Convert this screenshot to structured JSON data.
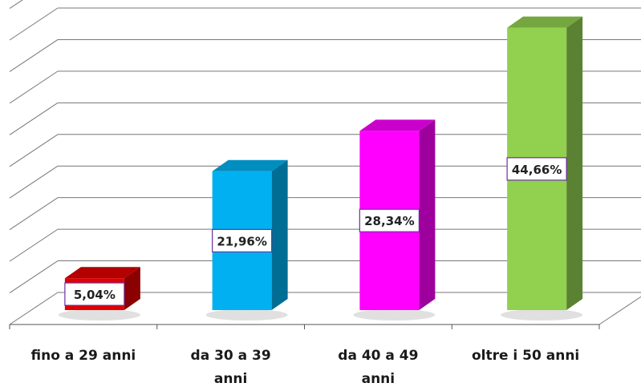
{
  "chart_data": {
    "type": "bar",
    "categories": [
      "fino a 29 anni",
      "da 30 a 39\nanni",
      "da 40 a 49\nanni",
      "oltre i 50 anni"
    ],
    "values": [
      5.04,
      21.96,
      28.34,
      44.66
    ],
    "value_labels": [
      "5,04%",
      "21,96%",
      "28,34%",
      "44,66%"
    ],
    "colors": [
      "#e00000",
      "#00b0f0",
      "#ff00ff",
      "#92d050"
    ],
    "ylim": [
      0,
      50
    ],
    "grid": true,
    "legend": "none",
    "style": "3d-column"
  }
}
